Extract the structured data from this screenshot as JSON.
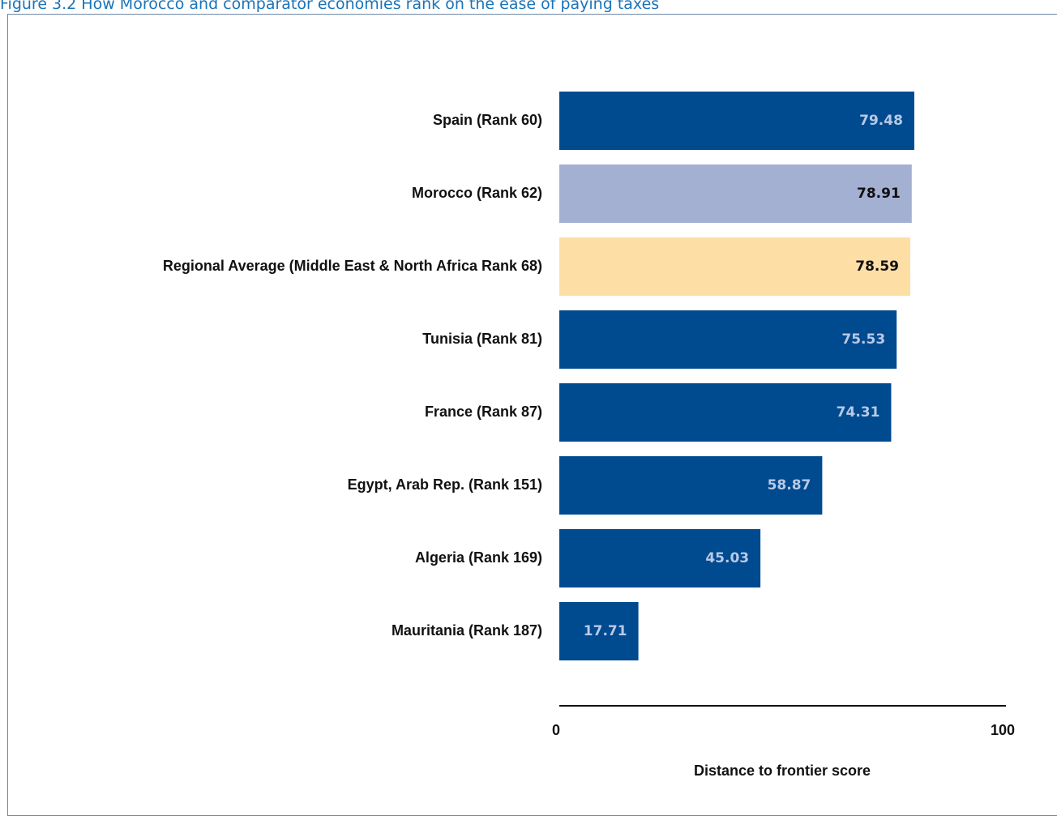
{
  "caption": "Figure 3.2 How Morocco and comparator economies rank on the ease of paying taxes",
  "colors": {
    "caption": "#1a73b8",
    "bar_default": "#004a8f",
    "bar_morocco": "#a4b0d2",
    "bar_regional": "#fddfa6",
    "label_on_dark": "#b9c9e6",
    "label_on_light": "#111111",
    "axis": "#111111",
    "frame": "#6b86a8"
  },
  "chart_data": {
    "type": "bar",
    "orientation": "horizontal",
    "categories": [
      "Spain (Rank 60)",
      "Morocco (Rank 62)",
      "Regional Average (Middle East & North Africa Rank 68)",
      "Tunisia (Rank 81)",
      "France (Rank 87)",
      "Egypt, Arab Rep. (Rank 151)",
      "Algeria (Rank 169)",
      "Mauritania (Rank 187)"
    ],
    "values": [
      79.48,
      78.91,
      78.59,
      75.53,
      74.31,
      58.87,
      45.03,
      17.71
    ],
    "value_labels": [
      "79.48",
      "78.91",
      "78.59",
      "75.53",
      "74.31",
      "58.87",
      "45.03",
      "17.71"
    ],
    "bar_styles": [
      "default",
      "morocco",
      "regional",
      "default",
      "default",
      "default",
      "default",
      "default"
    ],
    "title": "",
    "xlabel": "Distance to frontier score",
    "ylabel": "",
    "xlim": [
      0,
      100
    ],
    "x_ticks": [
      0,
      100
    ],
    "x_tick_labels": [
      "0",
      "100"
    ],
    "grid": false,
    "legend": "none"
  }
}
